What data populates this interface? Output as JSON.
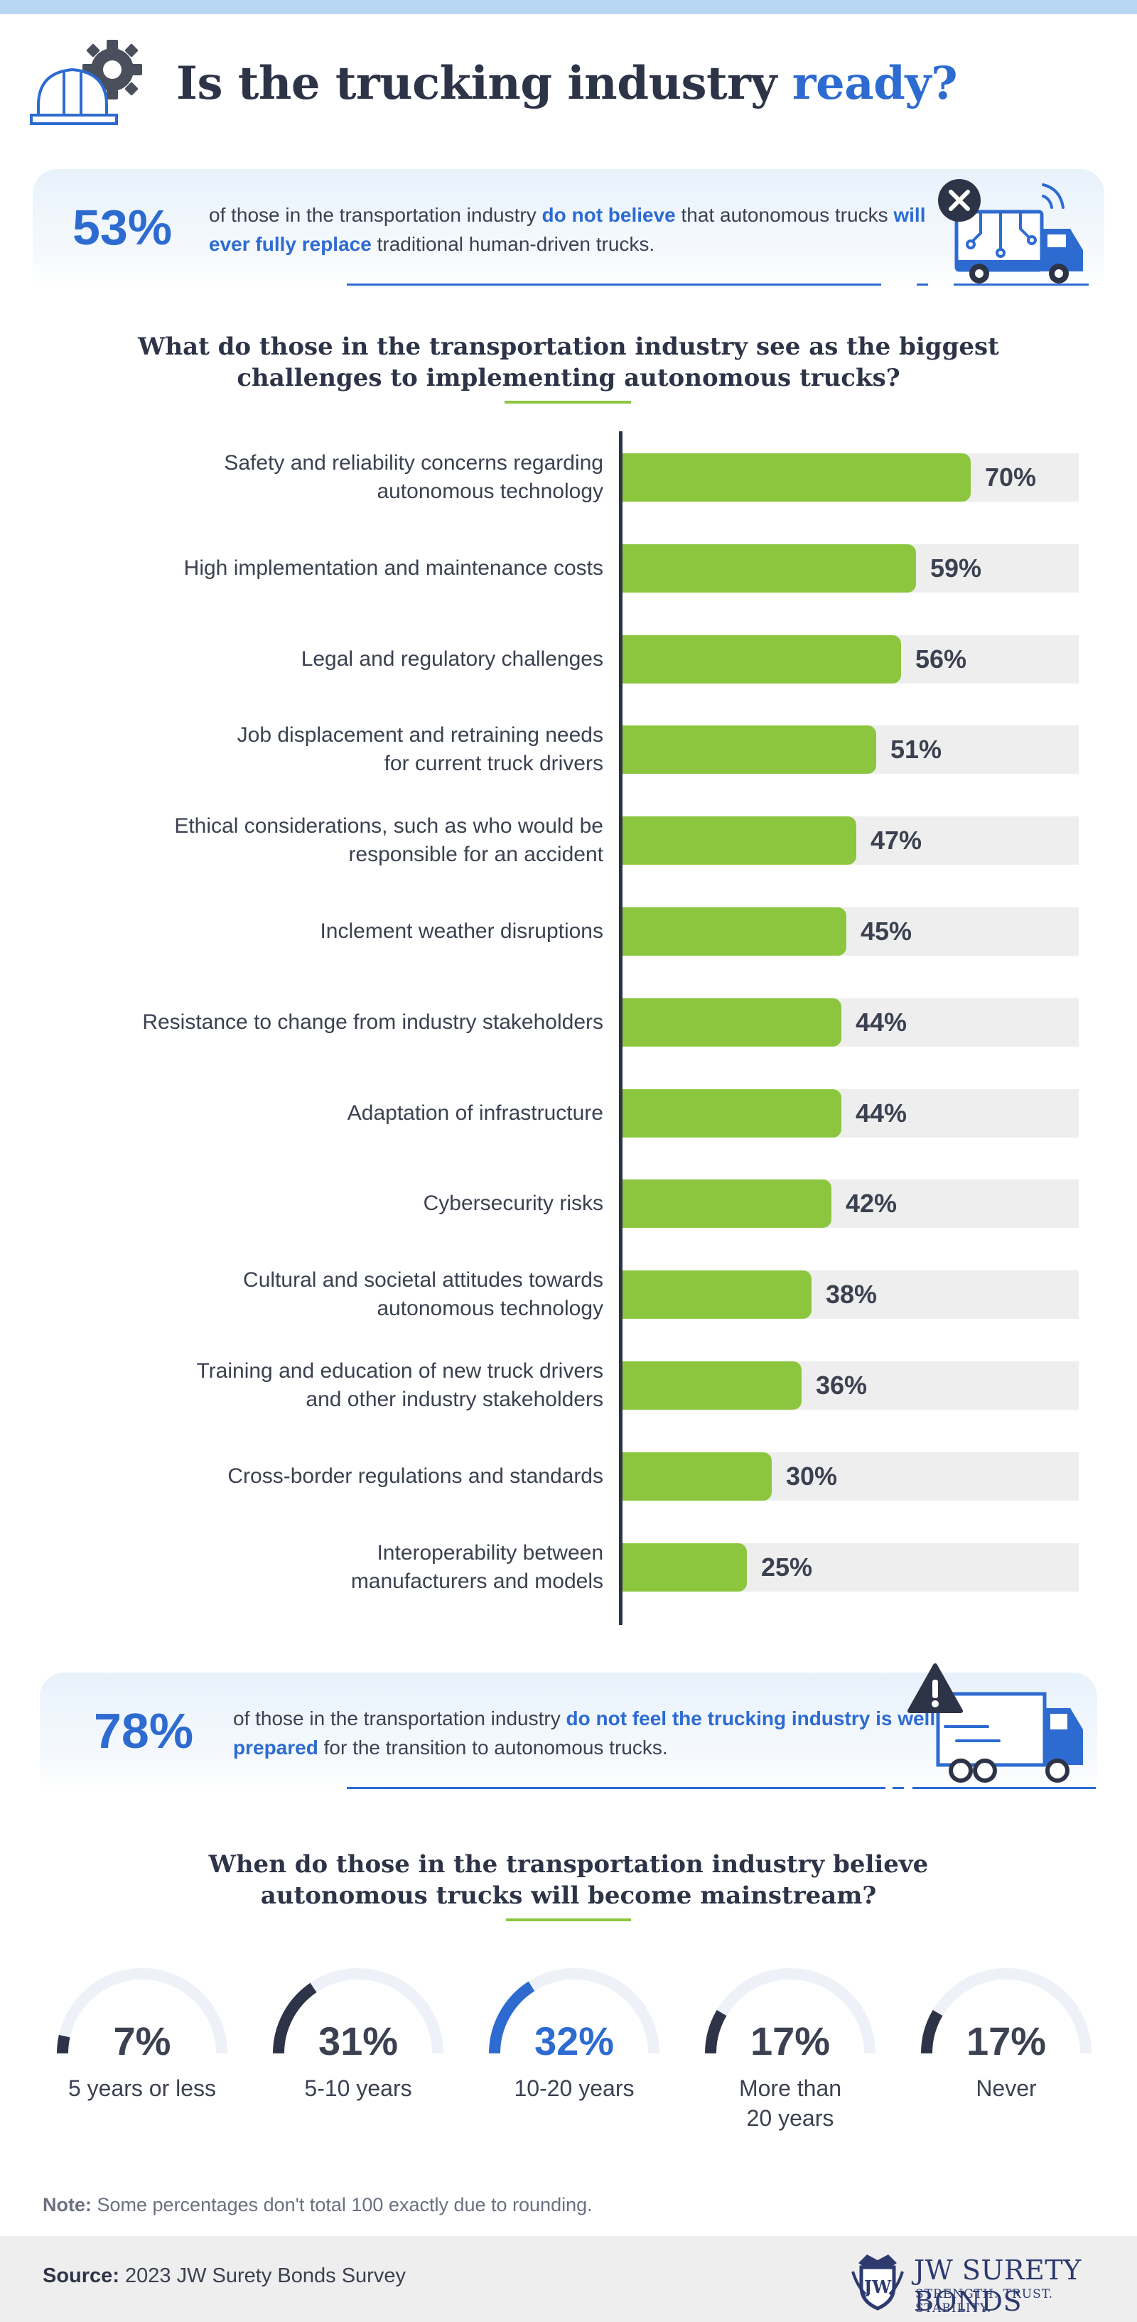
{
  "header": {
    "title_main": "Is the trucking industry ",
    "title_accent": "ready?"
  },
  "callout1": {
    "value": "53%",
    "t1": "of those in the transportation industry ",
    "b1": "do not believe",
    "t2": " that autonomous trucks ",
    "b2": "will ever fully replace",
    "t3": " traditional human-driven trucks."
  },
  "section1": {
    "line1": "What do those in the transportation industry see as the biggest",
    "line2": "challenges to implementing autonomous trucks?"
  },
  "chart_data": [
    {
      "type": "bar",
      "orientation": "horizontal",
      "categories": [
        "Safety and reliability concerns regarding autonomous technology",
        "High implementation and maintenance costs",
        "Legal and regulatory challenges",
        "Job displacement and retraining needs for current truck drivers",
        "Ethical considerations, such as who would be responsible for an accident",
        "Inclement weather disruptions",
        "Resistance to change from industry stakeholders",
        "Adaptation of infrastructure",
        "Cybersecurity risks",
        "Cultural and societal attitudes towards autonomous technology",
        "Training and education of new truck drivers and other industry stakeholders",
        "Cross-border regulations and standards",
        "Interoperability between manufacturers and models"
      ],
      "label_lines": [
        [
          "Safety and reliability concerns regarding",
          "autonomous technology"
        ],
        [
          "High implementation and maintenance costs"
        ],
        [
          "Legal and regulatory challenges"
        ],
        [
          "Job displacement and retraining needs",
          "for current truck drivers"
        ],
        [
          "Ethical considerations, such as who would be",
          "responsible for an accident"
        ],
        [
          "Inclement weather disruptions"
        ],
        [
          "Resistance to change from industry stakeholders"
        ],
        [
          "Adaptation of infrastructure"
        ],
        [
          "Cybersecurity risks"
        ],
        [
          "Cultural and societal attitudes towards",
          "autonomous technology"
        ],
        [
          "Training and education of new truck drivers",
          "and other industry stakeholders"
        ],
        [
          "Cross-border regulations and standards"
        ],
        [
          "Interoperability between",
          "manufacturers and models"
        ]
      ],
      "values": [
        70,
        59,
        56,
        51,
        47,
        45,
        44,
        44,
        42,
        38,
        36,
        30,
        25
      ],
      "value_labels": [
        "70%",
        "59%",
        "56%",
        "51%",
        "47%",
        "45%",
        "44%",
        "44%",
        "42%",
        "38%",
        "36%",
        "30%",
        "25%"
      ],
      "xlim": [
        0,
        100
      ],
      "bar_color": "#8cc63f",
      "track_color": "#eeeeef"
    },
    {
      "type": "gauge",
      "categories": [
        "5 years or less",
        "5-10 years",
        "10-20 years",
        "More than 20 years",
        "Never"
      ],
      "caption_lines": [
        [
          "5 years or less"
        ],
        [
          "5-10 years"
        ],
        [
          "10-20 years"
        ],
        [
          "More than",
          "20 years"
        ],
        [
          "Never"
        ]
      ],
      "values": [
        7,
        31,
        32,
        17,
        17
      ],
      "value_labels": [
        "7%",
        "31%",
        "32%",
        "17%",
        "17%"
      ],
      "highlight_index": 2,
      "colors": {
        "arc": "#2e3447",
        "highlight": "#2d6bd1",
        "track": "#eef1f8"
      }
    }
  ],
  "callout2": {
    "value": "78%",
    "t1": "of those in the transportation industry ",
    "b1": "do not feel the trucking industry is well prepared",
    "t2": " for the transition to autonomous trucks."
  },
  "section2": {
    "line1": "When do those in the transportation industry believe",
    "line2": "autonomous trucks will become mainstream?"
  },
  "note": {
    "label": "Note:",
    "text": " Some percentages don't total 100 exactly due to rounding."
  },
  "footer": {
    "source_label": "Source:",
    "source_text": " 2023 JW Surety Bonds Survey",
    "brand_name": "JW SURETY BONDS",
    "brand_tagline": "STRENGTH. TRUST. STABILITY.",
    "brand_monogram": "JW"
  },
  "colors": {
    "accent_blue": "#2d6bd1",
    "bar_green": "#8cc63f",
    "dark_navy": "#2e3447",
    "top_bar": "#b7d7f3"
  }
}
